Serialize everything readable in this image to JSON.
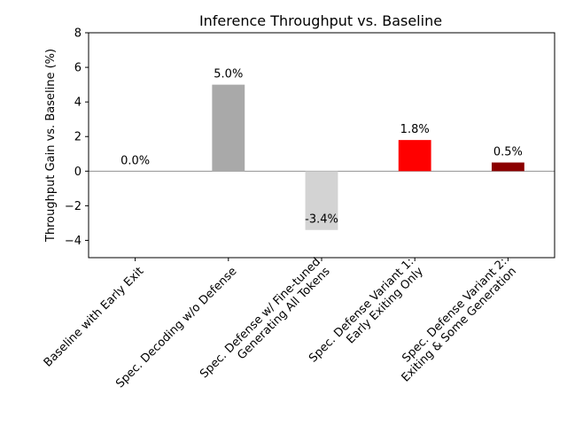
{
  "chart_data": {
    "type": "bar",
    "title": "Inference Throughput vs. Baseline",
    "xlabel": "",
    "ylabel": "Throughput Gain vs. Baseline (%)",
    "ylim": [
      -5,
      8
    ],
    "yticks": [
      -4,
      -2,
      0,
      2,
      4,
      6,
      8
    ],
    "ytick_labels": [
      "−4",
      "−2",
      "0",
      "2",
      "4",
      "6",
      "8"
    ],
    "grid": false,
    "zero_line": true,
    "categories": [
      [
        "Baseline with Early Exit"
      ],
      [
        "Spec. Decoding w/o Defense"
      ],
      [
        "Spec. Defense w/ Fine-tuned",
        "Generating All Tokens"
      ],
      [
        "Spec. Defense Variant 1:",
        "Early Exiting Only"
      ],
      [
        "Spec. Defense Variant 2:",
        "Exiting & Some Generation"
      ]
    ],
    "values": [
      0.0,
      5.0,
      -3.4,
      1.8,
      0.5
    ],
    "data_labels": [
      "0.0%",
      "5.0%",
      "-3.4%",
      "1.8%",
      "0.5%"
    ],
    "colors": [
      "#808080",
      "#a9a9a9",
      "#d3d3d3",
      "#ff0000",
      "#8b0000"
    ]
  }
}
